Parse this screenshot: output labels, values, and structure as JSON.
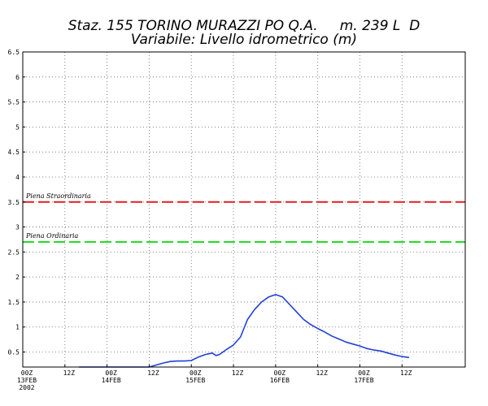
{
  "chart_data": {
    "type": "line",
    "title": "Staz. 155 TORINO MURAZZI PO Q.A.     m. 239 L  D",
    "subtitle": "Variabile: Livello idrometrico (m)",
    "xlabel": "",
    "ylabel": "",
    "x_unit": "hours",
    "xlim": [
      0,
      126
    ],
    "ylim": [
      0.2,
      6.5
    ],
    "grid": true,
    "y_ticks": [
      0.5,
      1,
      1.5,
      2,
      2.5,
      3,
      3.5,
      4,
      4.5,
      5,
      5.5,
      6,
      6.5
    ],
    "y_tick_labels": [
      "0.5",
      "1",
      "1.5",
      "2",
      "2.5",
      "3",
      "3.5",
      "4",
      "4.5",
      "5",
      "5.5",
      "6",
      "6.5"
    ],
    "x_ticks": [
      {
        "x": 0,
        "lines": [
          "00Z",
          "13FEB",
          "2002"
        ]
      },
      {
        "x": 12,
        "lines": [
          "12Z"
        ]
      },
      {
        "x": 24,
        "lines": [
          "00Z",
          "14FEB"
        ]
      },
      {
        "x": 36,
        "lines": [
          "12Z"
        ]
      },
      {
        "x": 48,
        "lines": [
          "00Z",
          "15FEB"
        ]
      },
      {
        "x": 60,
        "lines": [
          "12Z"
        ]
      },
      {
        "x": 72,
        "lines": [
          "00Z",
          "16FEB"
        ]
      },
      {
        "x": 84,
        "lines": [
          "12Z"
        ]
      },
      {
        "x": 96,
        "lines": [
          "00Z",
          "17FEB"
        ]
      },
      {
        "x": 108,
        "lines": [
          "12Z"
        ]
      }
    ],
    "reference_lines": [
      {
        "label": "Piena Straordinaria",
        "y": 3.5,
        "color": "#e0201e"
      },
      {
        "label": "Piena Ordinaria",
        "y": 2.7,
        "color": "#22dd22"
      }
    ],
    "series": [
      {
        "color": "#2040d8",
        "x": [
          16,
          18,
          20,
          22,
          24,
          26,
          28,
          30,
          32,
          34,
          36,
          38,
          40,
          42,
          44,
          46,
          48,
          50,
          52,
          54,
          55,
          56,
          57,
          58,
          60,
          62,
          64,
          66,
          68,
          70,
          72,
          74,
          76,
          78,
          80,
          82,
          84,
          86,
          88,
          90,
          92,
          94,
          96,
          98,
          100,
          102,
          104,
          106,
          108,
          110
        ],
        "y": [
          0.2,
          0.2,
          0.2,
          0.2,
          0.2,
          0.2,
          0.2,
          0.2,
          0.2,
          0.2,
          0.2,
          0.24,
          0.28,
          0.31,
          0.32,
          0.32,
          0.33,
          0.4,
          0.45,
          0.48,
          0.43,
          0.45,
          0.5,
          0.55,
          0.64,
          0.8,
          1.15,
          1.35,
          1.5,
          1.6,
          1.65,
          1.6,
          1.45,
          1.3,
          1.15,
          1.05,
          0.97,
          0.9,
          0.82,
          0.76,
          0.7,
          0.66,
          0.62,
          0.57,
          0.54,
          0.52,
          0.48,
          0.44,
          0.41,
          0.39
        ]
      }
    ]
  }
}
